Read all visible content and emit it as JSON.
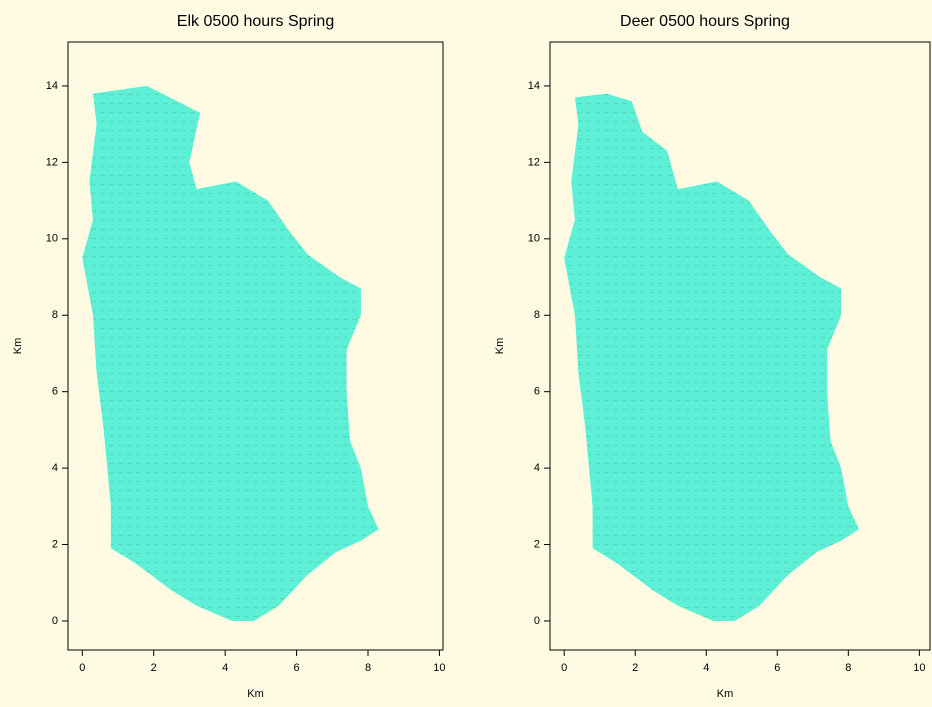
{
  "chart_data": [
    {
      "type": "area-map",
      "title": "Elk 0500 hours Spring",
      "x_label": "Km",
      "y_label": "Km",
      "color": "#5ef0d6",
      "xlim": [
        -0.4,
        10.1
      ],
      "ylim": [
        -0.76,
        15.15
      ],
      "xticks": [
        0,
        2,
        4,
        6,
        8,
        10
      ],
      "yticks": [
        0,
        2,
        4,
        6,
        8,
        10,
        12,
        14
      ],
      "x": [
        0.3,
        1.8,
        3.3,
        3.0,
        3.2,
        4.3,
        5.2,
        5.8,
        6.3,
        7.2,
        7.8,
        7.8,
        7.4,
        7.4,
        7.5,
        7.8,
        8.0,
        8.3,
        7.8,
        7.1,
        6.3,
        5.5,
        4.8,
        4.2,
        3.2,
        2.5,
        1.5,
        0.8,
        0.8,
        0.6,
        0.4,
        0.3,
        0.0,
        0.3,
        0.2,
        0.4
      ],
      "y": [
        13.8,
        14.0,
        13.3,
        12.0,
        11.3,
        11.5,
        11.0,
        10.2,
        9.6,
        9.0,
        8.7,
        8.0,
        7.1,
        6.0,
        4.7,
        4.0,
        3.0,
        2.4,
        2.1,
        1.8,
        1.2,
        0.4,
        0.0,
        0.0,
        0.4,
        0.8,
        1.5,
        1.9,
        3.0,
        5.0,
        6.5,
        8.0,
        9.5,
        10.5,
        11.5,
        13.0
      ]
    },
    {
      "type": "area-map",
      "title": "Deer 0500 hours Spring",
      "x_label": "Km",
      "y_label": "Km",
      "color": "#5ef0d6",
      "xlim": [
        -0.4,
        10.3
      ],
      "ylim": [
        -0.76,
        15.15
      ],
      "xticks": [
        0,
        2,
        4,
        6,
        8,
        10
      ],
      "yticks": [
        0,
        2,
        4,
        6,
        8,
        10,
        12,
        14
      ],
      "x": [
        0.3,
        1.2,
        1.9,
        2.2,
        2.9,
        3.2,
        4.3,
        5.2,
        5.8,
        6.3,
        7.2,
        7.8,
        7.8,
        7.4,
        7.4,
        7.5,
        7.8,
        8.0,
        8.3,
        7.8,
        7.1,
        6.3,
        5.5,
        4.8,
        4.2,
        3.2,
        2.5,
        1.5,
        0.8,
        0.8,
        0.6,
        0.4,
        0.3,
        0.0,
        0.3,
        0.2,
        0.4
      ],
      "y": [
        13.7,
        13.8,
        13.6,
        12.8,
        12.3,
        11.3,
        11.5,
        11.0,
        10.2,
        9.6,
        9.0,
        8.7,
        8.0,
        7.1,
        6.0,
        4.7,
        4.0,
        3.0,
        2.4,
        2.1,
        1.8,
        1.2,
        0.4,
        0.0,
        0.0,
        0.4,
        0.8,
        1.5,
        1.9,
        3.0,
        5.0,
        6.5,
        8.0,
        9.5,
        10.5,
        11.5,
        13.0
      ]
    }
  ]
}
